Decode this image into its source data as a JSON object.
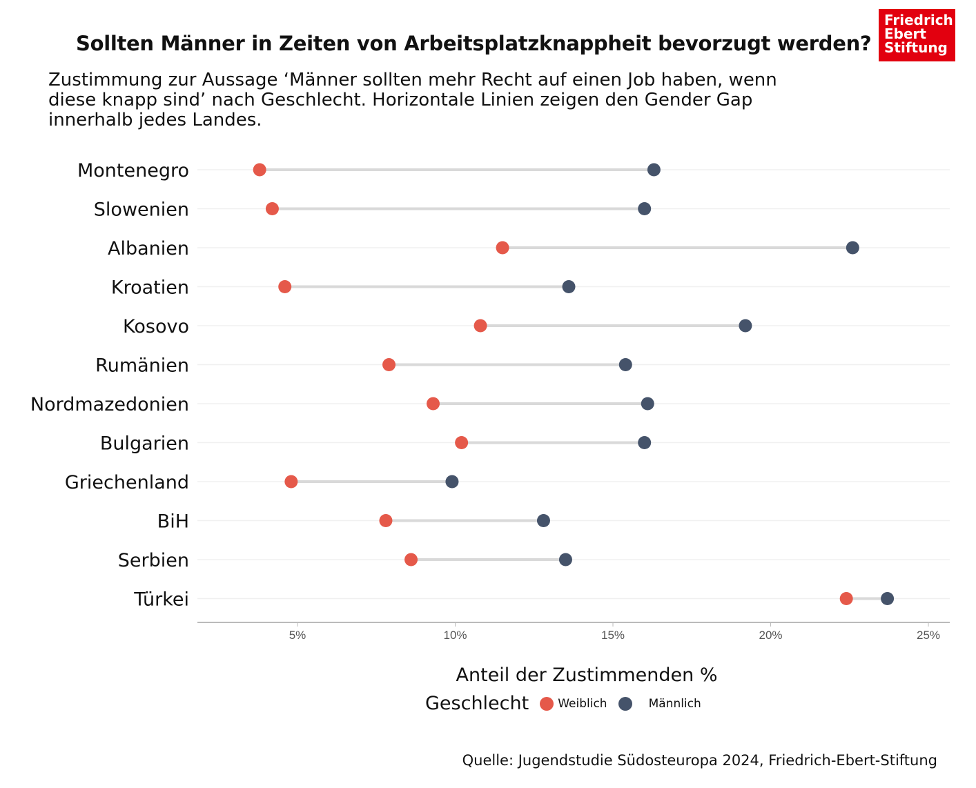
{
  "title": "Sollten Männer in Zeiten von Arbeitsplatzknappheit bevorzugt werden?",
  "subtitle": "Zustimmung zur Aussage ‘Männer sollten mehr Recht auf einen Job haben, wenn diese knapp sind’ nach Geschlecht. Horizontale Linien zeigen den Gender Gap innerhalb jedes Landes.",
  "logo": {
    "lines": [
      "Friedrich",
      "Ebert",
      "Stiftung"
    ],
    "color": "#e2000f"
  },
  "source": "Quelle: Jugendstudie Südosteuropa 2024, Friedrich-Ebert-Stiftung",
  "chart_data": {
    "type": "dumbbell",
    "xlabel": "Anteil der Zustimmenden %",
    "xlim": [
      1.8,
      25.7
    ],
    "xticks": [
      5,
      10,
      15,
      20,
      25
    ],
    "xtick_labels": [
      "5%",
      "10%",
      "15%",
      "20%",
      "25%"
    ],
    "grid": "horizontal",
    "legend": {
      "title": "Geschlecht",
      "position": "bottom"
    },
    "categories": [
      "Montenegro",
      "Slowenien",
      "Albanien",
      "Kroatien",
      "Kosovo",
      "Rumänien",
      "Nordmazedonien",
      "Bulgarien",
      "Griechenland",
      "BiH",
      "Serbien",
      "Türkei"
    ],
    "series": [
      {
        "name": "Weiblich",
        "color": "#e5594a",
        "values": [
          3.8,
          4.2,
          11.5,
          4.6,
          10.8,
          7.9,
          9.3,
          10.2,
          4.8,
          7.8,
          8.6,
          22.4
        ]
      },
      {
        "name": "Männlich",
        "color": "#45536a",
        "values": [
          16.3,
          16.0,
          22.6,
          13.6,
          19.2,
          15.4,
          16.1,
          16.0,
          9.9,
          12.8,
          13.5,
          23.7
        ]
      }
    ]
  }
}
